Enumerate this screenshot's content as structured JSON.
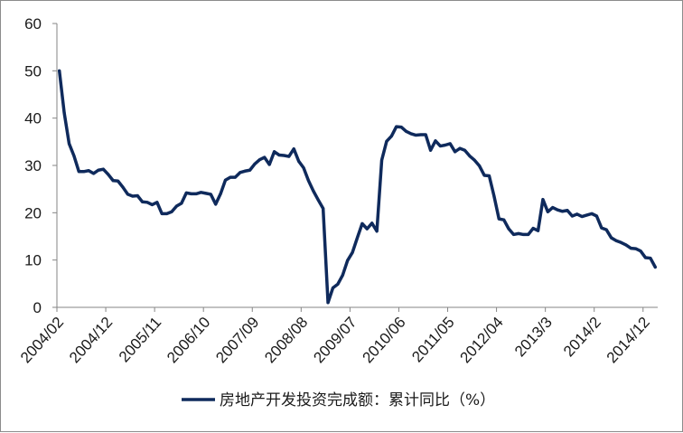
{
  "chart_data": {
    "type": "line",
    "ylim": [
      0,
      60
    ],
    "y_ticks": [
      0,
      10,
      20,
      30,
      40,
      50,
      60
    ],
    "x_ticks": [
      "2004/02",
      "2004/12",
      "2005/11",
      "2006/10",
      "2007/09",
      "2008/08",
      "2009/07",
      "2010/06",
      "2011/05",
      "2012/04",
      "2013/3",
      "2014/2",
      "2014/12"
    ],
    "grid": false,
    "legend_position": "bottom",
    "axis_color": "#868686",
    "series": [
      {
        "name": "房地产开发投资完成额：累计同比（%）",
        "color": "#0f2a5c",
        "values": [
          50.0,
          41.1,
          34.6,
          32.0,
          28.7,
          28.7,
          28.9,
          28.3,
          29.0,
          29.2,
          28.1,
          26.8,
          26.7,
          25.4,
          23.9,
          23.5,
          23.6,
          22.3,
          22.2,
          21.7,
          22.2,
          19.8,
          19.8,
          20.2,
          21.4,
          22.0,
          24.2,
          24.0,
          24.0,
          24.3,
          24.1,
          23.9,
          21.8,
          24.0,
          26.9,
          27.5,
          27.5,
          28.5,
          28.8,
          29.0,
          30.3,
          31.2,
          31.7,
          30.2,
          32.9,
          32.2,
          32.1,
          31.9,
          33.5,
          30.9,
          29.5,
          26.8,
          24.6,
          22.7,
          20.9,
          1.0,
          4.1,
          4.9,
          6.8,
          9.9,
          11.6,
          14.7,
          17.7,
          16.6,
          17.8,
          16.1,
          31.1,
          35.1,
          36.2,
          38.2,
          38.1,
          37.2,
          36.7,
          36.4,
          36.5,
          36.5,
          33.2,
          35.2,
          34.1,
          34.3,
          34.6,
          32.9,
          33.6,
          33.2,
          32.0,
          31.1,
          29.9,
          27.9,
          27.8,
          23.5,
          18.7,
          18.5,
          16.6,
          15.4,
          15.6,
          15.4,
          15.4,
          16.7,
          16.2,
          22.8,
          20.2,
          21.1,
          20.6,
          20.3,
          20.5,
          19.3,
          19.7,
          19.2,
          19.5,
          19.8,
          19.3,
          16.8,
          16.4,
          14.7,
          14.1,
          13.7,
          13.2,
          12.5,
          12.4,
          11.9,
          10.5,
          10.4,
          8.5
        ]
      }
    ]
  }
}
